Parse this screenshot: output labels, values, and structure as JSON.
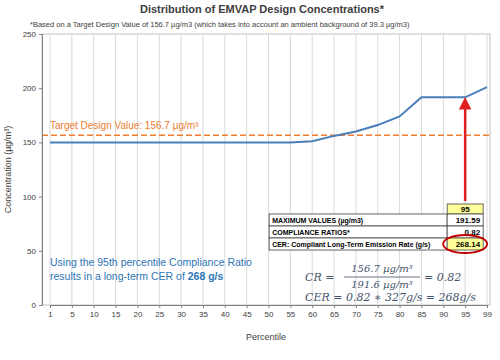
{
  "chart_data": {
    "type": "line",
    "title": "Distribution of EMVAP Design Concentrations*",
    "subtitle": "*Based on a Target Design Value of 156.7 µg/m3 (which takes into account an ambient background of 39.3 µg/m3)",
    "x_label": "Percentile",
    "y_label": "Concentration (µg/m³)",
    "categories": [
      1,
      5,
      10,
      15,
      20,
      25,
      30,
      35,
      40,
      45,
      50,
      55,
      60,
      65,
      70,
      75,
      80,
      85,
      90,
      95,
      99
    ],
    "values": [
      150,
      150,
      150,
      150,
      150,
      150,
      150,
      150,
      150,
      150,
      150,
      150,
      151,
      156,
      160,
      166,
      174,
      191.59,
      191.59,
      191.59,
      201
    ],
    "color": "#4a7ebb",
    "ylim": [
      0,
      250
    ],
    "yticks": [
      0,
      50,
      100,
      150,
      200,
      250
    ],
    "grid": true,
    "target_line": {
      "value": 156.7,
      "label": "Target Design Value: 156.7 µg/m³",
      "color": "#ed7d31"
    },
    "table": {
      "header": 95,
      "rows": [
        {
          "label": "MAXIMUM VALUES (µg/m3)",
          "value": 191.59
        },
        {
          "label": "COMPLIANCE RATIOS*",
          "value": 0.82
        },
        {
          "label": "CER: Compliant Long-Term Emission Rate (g/s)",
          "value": 268.14
        }
      ]
    },
    "note": {
      "lines": [
        "Using the 95th percentile Compliance Ratio",
        "results in a long-term CER of "
      ],
      "emphasis": "268 g/s"
    },
    "formulas": {
      "cr": {
        "lhs": "CR =",
        "numerator": "156.7 µg/m³",
        "denominator": "191.6 µg/m³",
        "result": "= 0.82"
      },
      "cer": "CER = 0.82 ∗ 327g/s = 268g/s"
    }
  }
}
